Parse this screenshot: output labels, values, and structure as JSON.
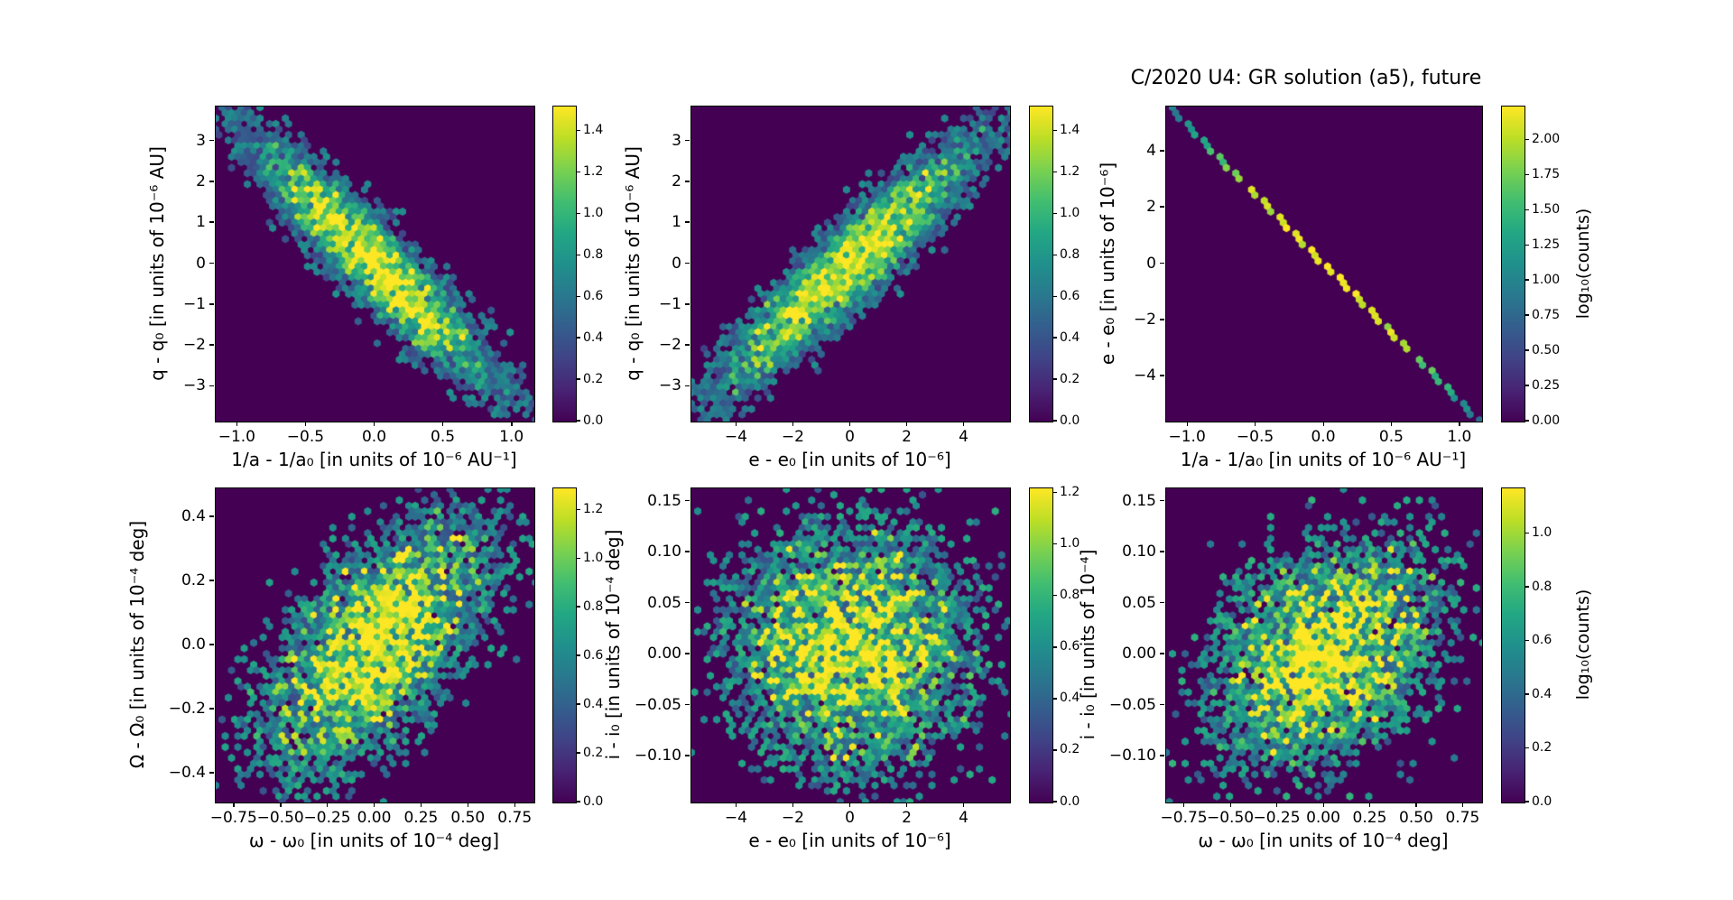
{
  "figure": {
    "title": "C/2020 U4: GR solution (a5), future",
    "background_color": "#ffffff",
    "plot_background_color": "#440154",
    "colormap": "viridis",
    "colormap_min_hex": "#440154",
    "colormap_max_hex": "#fde725"
  },
  "chart_data": {
    "type": "heatmap",
    "subtype": "hexbin-density",
    "title": "C/2020 U4: GR solution (a5), future",
    "counts_scale": "log10",
    "colorbar_label": "log₁₀(counts)",
    "layout_hint": "2 rows x 3 columns, each panel with its own vertical colorbar on the right; grid off; dark viridis background",
    "panels": [
      {
        "id": "top-left",
        "xlabel": "1/a - 1/a₀ [in units of 10⁻⁶ AU⁻¹]",
        "ylabel": "q - q₀ [in units of 10⁻⁶ AU]",
        "x_ticks": [
          -1.0,
          -0.5,
          0.0,
          0.5,
          1.0
        ],
        "x_tick_labels": [
          "−1.0",
          "−0.5",
          "0.0",
          "0.5",
          "1.0"
        ],
        "y_ticks": [
          3,
          2,
          1,
          0,
          -1,
          -2,
          -3
        ],
        "y_tick_labels": [
          "3",
          "2",
          "1",
          "0",
          "−1",
          "−2",
          "−3"
        ],
        "x_range": [
          -1.16,
          1.16
        ],
        "y_range": [
          -3.85,
          3.85
        ],
        "correlation": "strong negative diagonal ellipse",
        "distribution": {
          "kind": "gaussian",
          "center": [
            0,
            0
          ],
          "sigma_x": 0.42,
          "sigma_y": 1.45,
          "rho": -0.93,
          "peak_counts": 32,
          "noise": 1.2
        },
        "colorbar": {
          "ticks": [
            0.0,
            0.2,
            0.4,
            0.6,
            0.8,
            1.0,
            1.2,
            1.4
          ],
          "tick_labels": [
            "0.0",
            "0.2",
            "0.4",
            "0.6",
            "0.8",
            "1.0",
            "1.2",
            "1.4"
          ],
          "vmax": 1.52,
          "label": null
        },
        "seed": 101
      },
      {
        "id": "top-middle",
        "xlabel": "e - e₀ [in units of 10⁻⁶]",
        "ylabel": "q - q₀ [in units of 10⁻⁶ AU]",
        "x_ticks": [
          -4,
          -2,
          0,
          2,
          4
        ],
        "x_tick_labels": [
          "−4",
          "−2",
          "0",
          "2",
          "4"
        ],
        "y_ticks": [
          3,
          2,
          1,
          0,
          -1,
          -2,
          -3
        ],
        "y_tick_labels": [
          "3",
          "2",
          "1",
          "0",
          "−1",
          "−2",
          "−3"
        ],
        "x_range": [
          -5.6,
          5.6
        ],
        "y_range": [
          -3.85,
          3.85
        ],
        "correlation": "strong positive diagonal ellipse",
        "distribution": {
          "kind": "gaussian",
          "center": [
            0,
            0
          ],
          "sigma_x": 2.15,
          "sigma_y": 1.45,
          "rho": 0.93,
          "peak_counts": 32,
          "noise": 1.2
        },
        "colorbar": {
          "ticks": [
            0.0,
            0.2,
            0.4,
            0.6,
            0.8,
            1.0,
            1.2,
            1.4
          ],
          "tick_labels": [
            "0.0",
            "0.2",
            "0.4",
            "0.6",
            "0.8",
            "1.0",
            "1.2",
            "1.4"
          ],
          "vmax": 1.52,
          "label": null
        },
        "seed": 202
      },
      {
        "id": "top-right",
        "has_title": true,
        "xlabel": "1/a - 1/a₀ [in units of 10⁻⁶ AU⁻¹]",
        "ylabel": "e - e₀ [in units of 10⁻⁶]",
        "x_ticks": [
          -1.0,
          -0.5,
          0.0,
          0.5,
          1.0
        ],
        "x_tick_labels": [
          "−1.0",
          "−0.5",
          "0.0",
          "0.5",
          "1.0"
        ],
        "y_ticks": [
          4,
          2,
          0,
          -2,
          -4
        ],
        "y_tick_labels": [
          "4",
          "2",
          "0",
          "−2",
          "−4"
        ],
        "x_range": [
          -1.16,
          1.16
        ],
        "y_range": [
          -5.6,
          5.6
        ],
        "correlation": "perfect negative linear correlation (thin line), brightest at center",
        "distribution": {
          "kind": "line",
          "slope": -4.91,
          "intercept": 0,
          "half_width": 0.11,
          "sigma_along": 0.45,
          "peak_counts": 160,
          "noise": 0.45
        },
        "colorbar": {
          "ticks": [
            0.0,
            0.25,
            0.5,
            0.75,
            1.0,
            1.25,
            1.5,
            1.75,
            2.0
          ],
          "tick_labels": [
            "0.00",
            "0.25",
            "0.50",
            "0.75",
            "1.00",
            "1.25",
            "1.50",
            "1.75",
            "2.00"
          ],
          "vmax": 2.24,
          "label": "log₁₀(counts)"
        },
        "seed": 303
      },
      {
        "id": "bottom-left",
        "xlabel": "ω - ω₀ [in units of 10⁻⁴ deg]",
        "ylabel": "Ω - Ω₀ [in units of 10⁻⁴ deg]",
        "x_ticks": [
          -0.75,
          -0.5,
          -0.25,
          0.0,
          0.25,
          0.5,
          0.75
        ],
        "x_tick_labels": [
          "−0.75",
          "−0.50",
          "−0.25",
          "0.00",
          "0.25",
          "0.50",
          "0.75"
        ],
        "y_ticks": [
          0.4,
          0.2,
          0.0,
          -0.2,
          -0.4
        ],
        "y_tick_labels": [
          "0.4",
          "0.2",
          "0.0",
          "−0.2",
          "−0.4"
        ],
        "x_range": [
          -0.85,
          0.85
        ],
        "y_range": [
          -0.49,
          0.49
        ],
        "correlation": "loose positive correlation, sparse speckled cloud",
        "distribution": {
          "kind": "gaussian",
          "center": [
            0,
            0
          ],
          "sigma_x": 0.27,
          "sigma_y": 0.18,
          "rho": 0.62,
          "peak_counts": 19,
          "noise": 1.8
        },
        "colorbar": {
          "ticks": [
            0.0,
            0.2,
            0.4,
            0.6,
            0.8,
            1.0,
            1.2
          ],
          "tick_labels": [
            "0.0",
            "0.2",
            "0.4",
            "0.6",
            "0.8",
            "1.0",
            "1.2"
          ],
          "vmax": 1.29,
          "label": null
        },
        "seed": 404
      },
      {
        "id": "bottom-middle",
        "xlabel": "e - e₀ [in units of 10⁻⁶]",
        "ylabel": "i - i₀ [in units of 10⁻⁴ deg]",
        "x_ticks": [
          -4,
          -2,
          0,
          2,
          4
        ],
        "x_tick_labels": [
          "−4",
          "−2",
          "0",
          "2",
          "4"
        ],
        "y_ticks": [
          0.15,
          0.1,
          0.05,
          0.0,
          -0.05,
          -0.1
        ],
        "y_tick_labels": [
          "0.15",
          "0.10",
          "0.05",
          "0.00",
          "−0.05",
          "−0.10"
        ],
        "x_range": [
          -5.6,
          5.6
        ],
        "y_range": [
          -0.145,
          0.163
        ],
        "correlation": "no correlation, round speckled cloud",
        "distribution": {
          "kind": "gaussian",
          "center": [
            0,
            0.005
          ],
          "sigma_x": 1.9,
          "sigma_y": 0.052,
          "rho": 0.0,
          "peak_counts": 16,
          "noise": 1.8
        },
        "colorbar": {
          "ticks": [
            0.0,
            0.2,
            0.4,
            0.6,
            0.8,
            1.0,
            1.2
          ],
          "tick_labels": [
            "0.0",
            "0.2",
            "0.4",
            "0.6",
            "0.8",
            "1.0",
            "1.2"
          ],
          "vmax": 1.22,
          "label": null
        },
        "seed": 505
      },
      {
        "id": "bottom-right",
        "xlabel": "ω - ω₀ [in units of 10⁻⁴ deg]",
        "ylabel": "i - i₀ [in units of 10⁻⁴]",
        "x_ticks": [
          -0.75,
          -0.5,
          -0.25,
          0.0,
          0.25,
          0.5,
          0.75
        ],
        "x_tick_labels": [
          "−0.75",
          "−0.50",
          "−0.25",
          "0.00",
          "0.25",
          "0.50",
          "0.75"
        ],
        "y_ticks": [
          0.15,
          0.1,
          0.05,
          0.0,
          -0.05,
          -0.1
        ],
        "y_tick_labels": [
          "0.15",
          "0.10",
          "0.05",
          "0.00",
          "−0.05",
          "−0.10"
        ],
        "x_range": [
          -0.85,
          0.85
        ],
        "y_range": [
          -0.145,
          0.163
        ],
        "correlation": "weak positive correlation, round speckled cloud",
        "distribution": {
          "kind": "gaussian",
          "center": [
            0,
            0
          ],
          "sigma_x": 0.27,
          "sigma_y": 0.05,
          "rho": 0.3,
          "peak_counts": 15,
          "noise": 1.8
        },
        "colorbar": {
          "ticks": [
            0.0,
            0.2,
            0.4,
            0.6,
            0.8,
            1.0
          ],
          "tick_labels": [
            "0.0",
            "0.2",
            "0.4",
            "0.6",
            "0.8",
            "1.0"
          ],
          "vmax": 1.17,
          "label": "log₁₀(counts)"
        },
        "seed": 606
      }
    ]
  }
}
